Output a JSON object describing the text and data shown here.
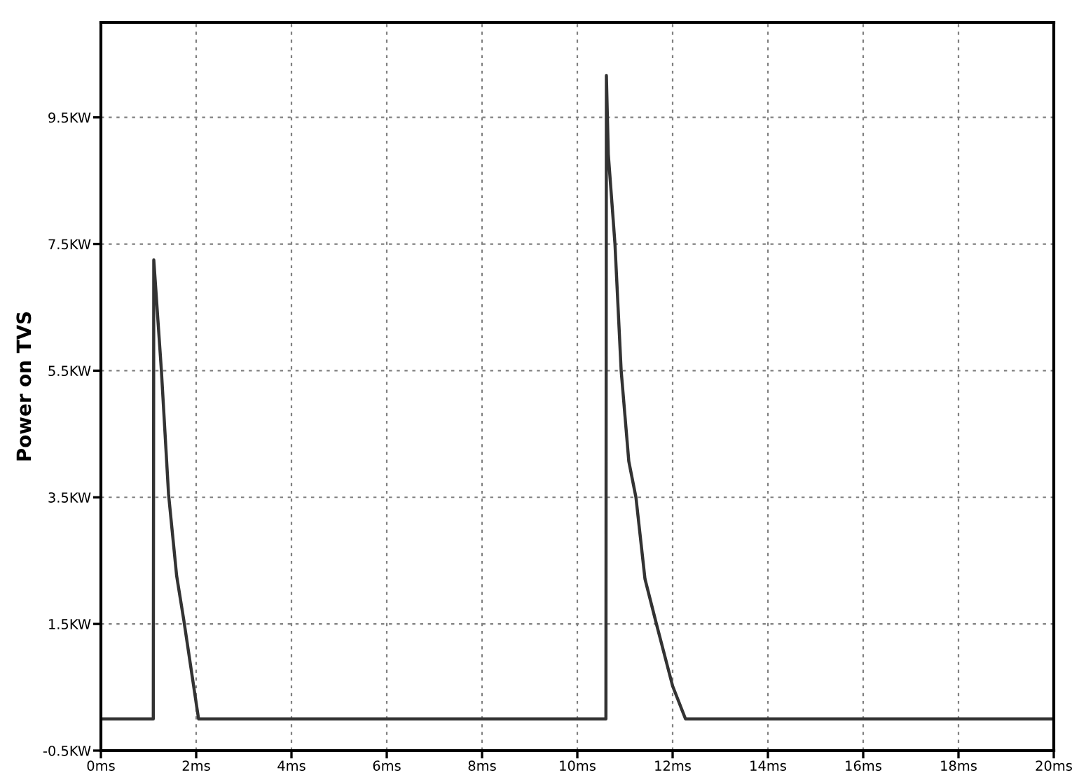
{
  "chart_data": {
    "type": "line",
    "ylabel": "Power on TVS",
    "x": [
      0,
      1.1,
      1.11,
      1.27,
      1.42,
      1.59,
      1.74,
      2.05,
      10.6,
      10.61,
      10.65,
      10.79,
      10.92,
      11.08,
      11.23,
      11.42,
      11.66,
      12.0,
      12.27,
      20
    ],
    "series": [
      {
        "color": "#333333",
        "values": [
          0,
          0,
          7.25,
          5.5,
          3.55,
          2.26,
          1.56,
          0,
          0,
          10.16,
          8.92,
          7.5,
          5.5,
          4.07,
          3.5,
          2.21,
          1.5,
          0.52,
          0,
          0
        ]
      }
    ],
    "xlim": [
      0,
      20
    ],
    "ylim": [
      -0.5,
      11
    ],
    "xticks": [
      {
        "value": 0,
        "label": "0ms"
      },
      {
        "value": 2,
        "label": "2ms"
      },
      {
        "value": 4,
        "label": "4ms"
      },
      {
        "value": 6,
        "label": "6ms"
      },
      {
        "value": 8,
        "label": "8ms"
      },
      {
        "value": 10,
        "label": "10ms"
      },
      {
        "value": 12,
        "label": "12ms"
      },
      {
        "value": 14,
        "label": "14ms"
      },
      {
        "value": 16,
        "label": "16ms"
      },
      {
        "value": 18,
        "label": "18ms"
      },
      {
        "value": 20,
        "label": "20ms"
      }
    ],
    "yticks": [
      {
        "value": -0.5,
        "label": "-0.5KW"
      },
      {
        "value": 1.5,
        "label": "1.5KW"
      },
      {
        "value": 3.5,
        "label": "3.5KW"
      },
      {
        "value": 5.5,
        "label": "5.5KW"
      },
      {
        "value": 7.5,
        "label": "7.5KW"
      },
      {
        "value": 9.5,
        "label": "9.5KW"
      }
    ],
    "grid": true,
    "line_style": "solid",
    "marker": "none",
    "legend": false
  }
}
